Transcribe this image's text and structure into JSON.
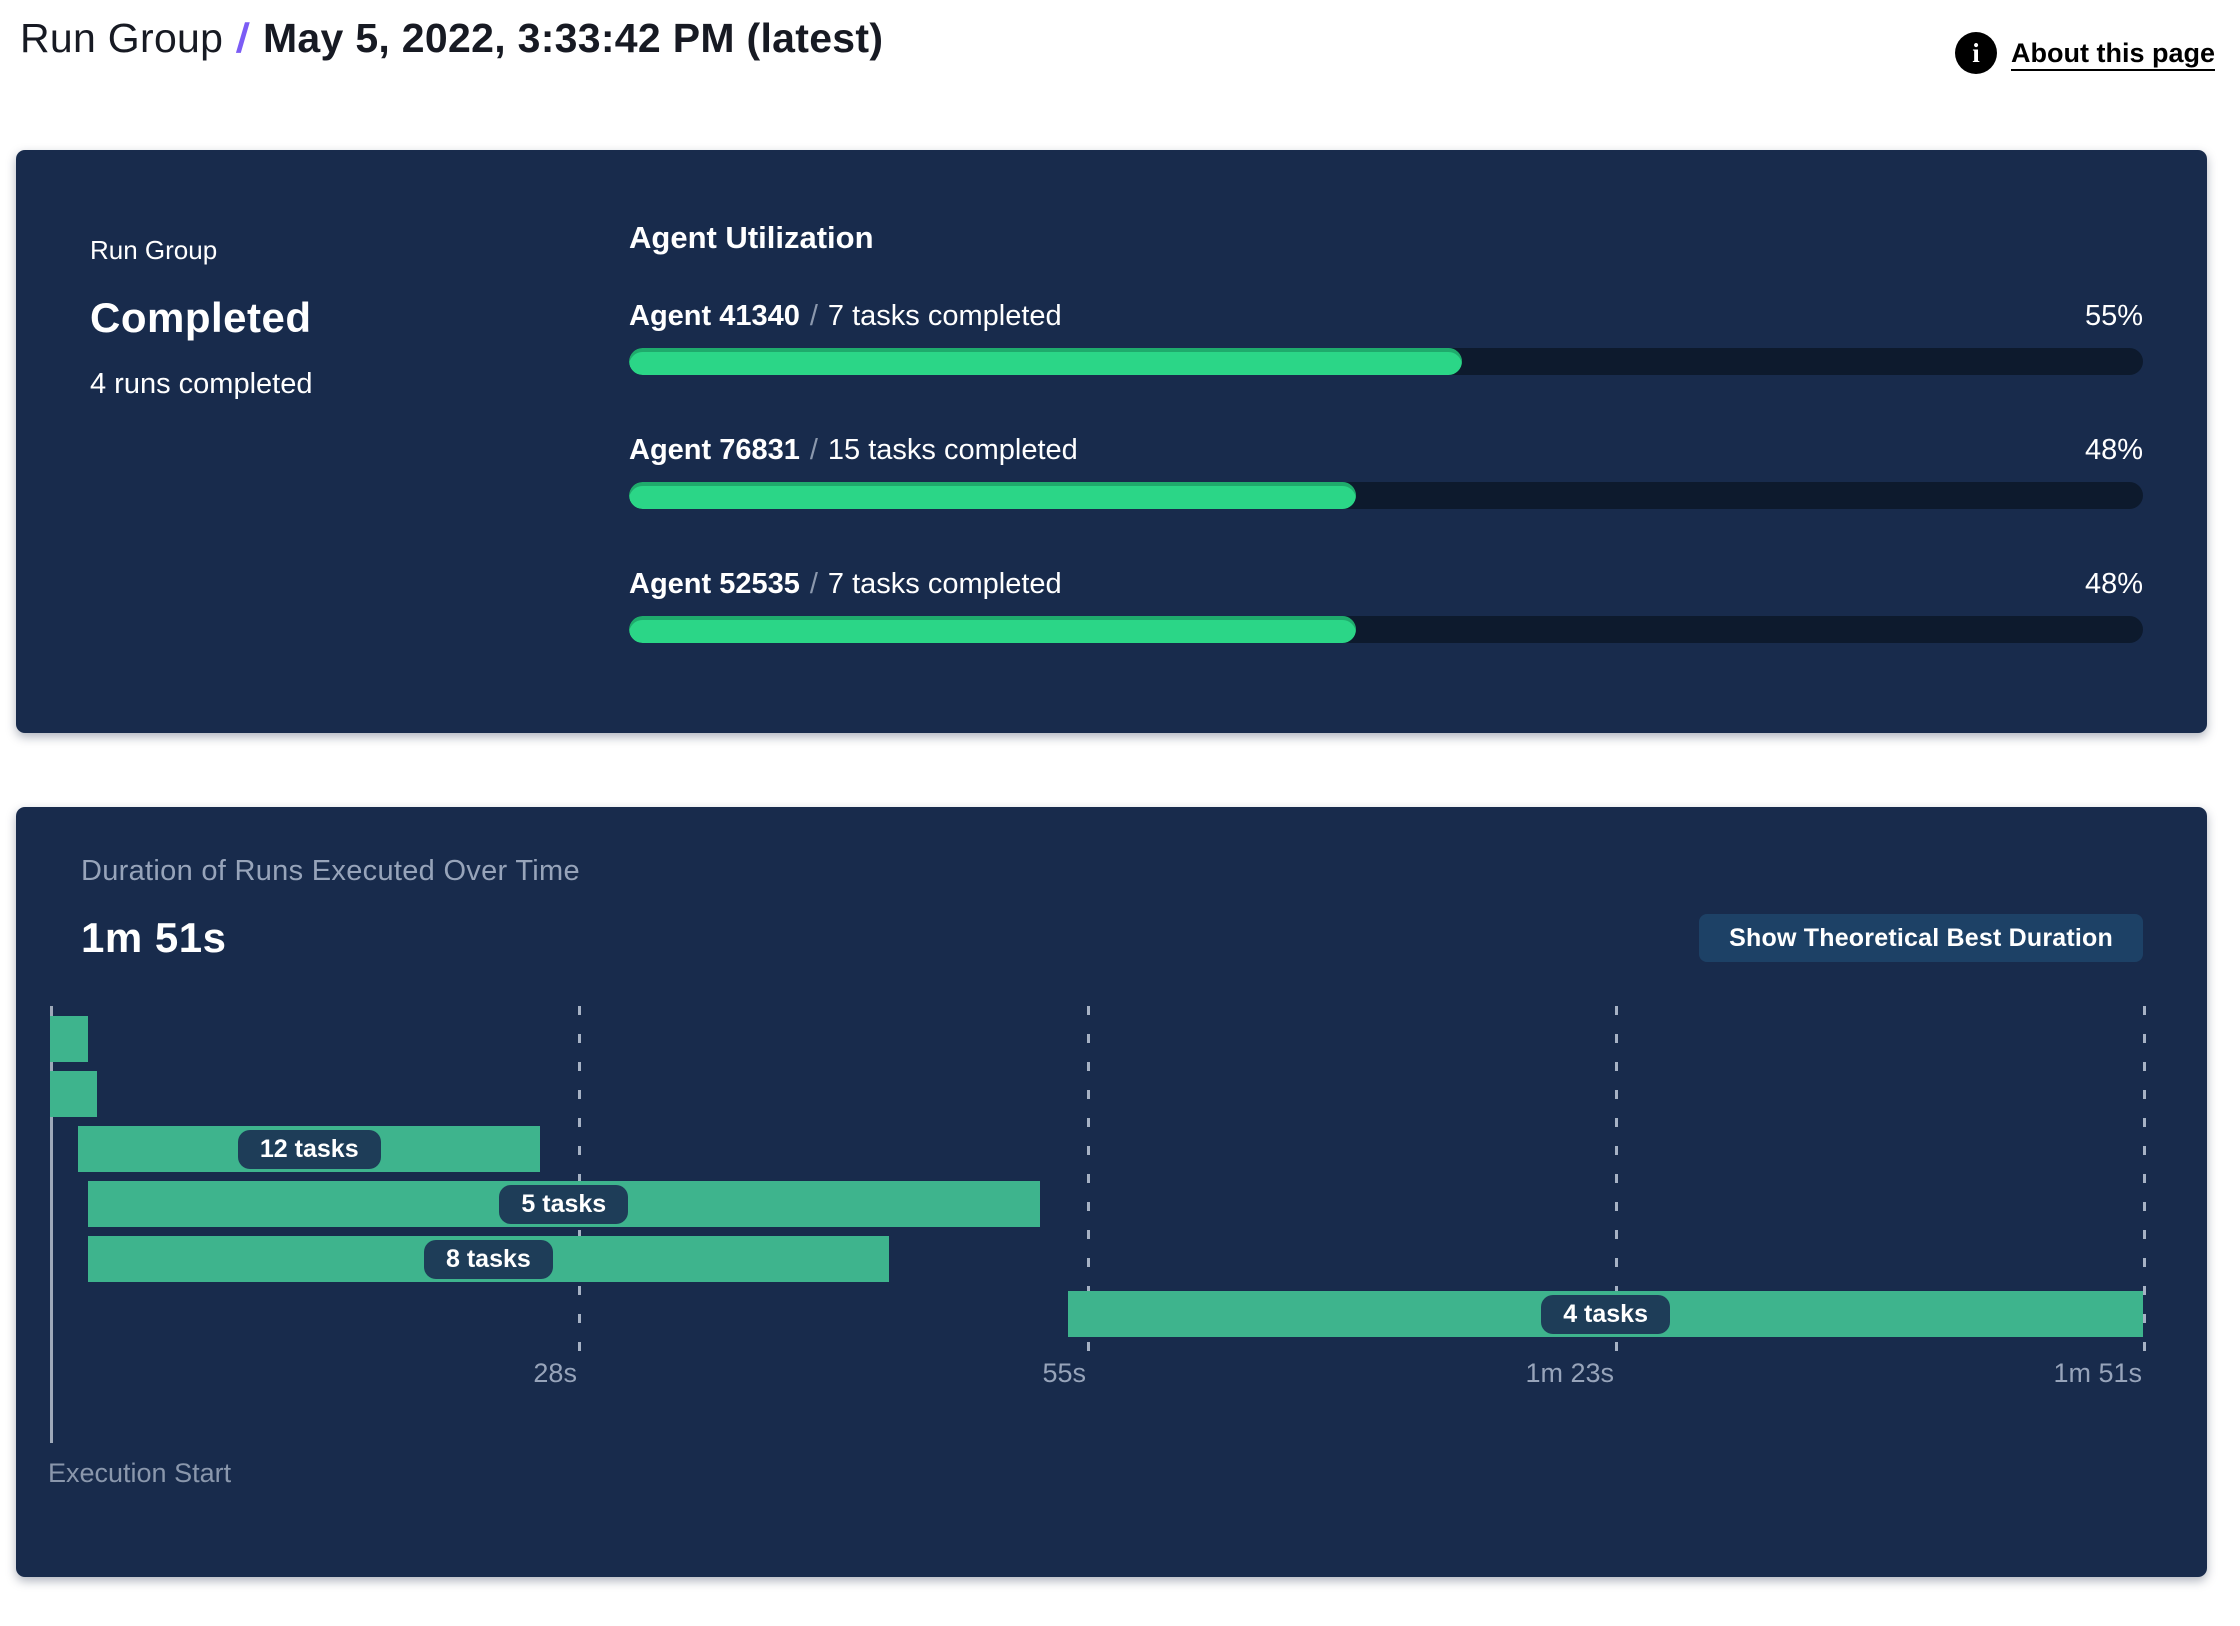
{
  "colors": {
    "panel": "#182B4C",
    "track": "#0D1A2D",
    "green": "#2BD687",
    "gantt-green": "#3EB48D",
    "pill": "#1E3D58",
    "button": "#1D4166",
    "slash": "#7B5CF5"
  },
  "header": {
    "breadcrumb_root": "Run Group",
    "separator": "/",
    "title": "May 5, 2022, 3:33:42 PM (latest)",
    "info_icon": "i",
    "about_link": "About this page"
  },
  "run_group_panel": {
    "label": "Run Group",
    "status": "Completed",
    "summary": "4 runs completed",
    "utilization": {
      "title": "Agent Utilization",
      "separator": "/",
      "rows": [
        {
          "agent": "Agent 41340",
          "tasks": "7 tasks completed",
          "percent": 55,
          "percent_label": "55%"
        },
        {
          "agent": "Agent 76831",
          "tasks": "15 tasks completed",
          "percent": 48,
          "percent_label": "48%"
        },
        {
          "agent": "Agent 52535",
          "tasks": "7 tasks completed",
          "percent": 48,
          "percent_label": "48%"
        }
      ]
    }
  },
  "duration_panel": {
    "subtitle": "Duration of Runs Executed Over Time",
    "total_label": "1m 51s",
    "button_label": "Show Theoretical Best Duration",
    "axis_label": "Execution Start"
  },
  "chart_data": {
    "type": "bar",
    "variant": "gantt-timeline",
    "title": "Duration of Runs Executed Over Time",
    "total_duration_label": "1m 51s",
    "total_duration_s": 111,
    "xlabel": "Execution Start",
    "x_ticks": [
      {
        "label": "28s",
        "s": 28
      },
      {
        "label": "55s",
        "s": 55
      },
      {
        "label": "1m 23s",
        "s": 83
      },
      {
        "label": "1m 51s",
        "s": 111
      }
    ],
    "bars": [
      {
        "start_s": 0,
        "end_s": 2,
        "label": ""
      },
      {
        "start_s": 0,
        "end_s": 2.5,
        "label": ""
      },
      {
        "start_s": 1.5,
        "end_s": 26,
        "label": "12 tasks"
      },
      {
        "start_s": 2,
        "end_s": 52.5,
        "label": "5 tasks"
      },
      {
        "start_s": 2,
        "end_s": 44.5,
        "label": "8 tasks"
      },
      {
        "start_s": 54,
        "end_s": 111,
        "label": "4 tasks"
      }
    ],
    "grid": true,
    "legend": false
  }
}
